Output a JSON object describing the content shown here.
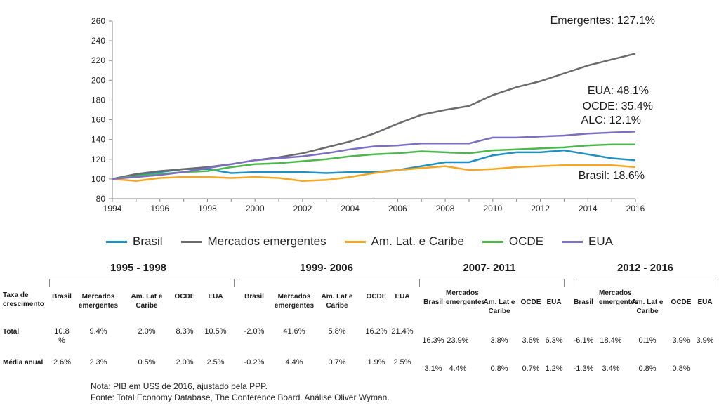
{
  "chart_data": {
    "type": "line",
    "x": [
      1994,
      1995,
      1996,
      1997,
      1998,
      1999,
      2000,
      2001,
      2002,
      2003,
      2004,
      2005,
      2006,
      2007,
      2008,
      2009,
      2010,
      2011,
      2012,
      2013,
      2014,
      2015,
      2016
    ],
    "x_ticks": [
      "1994",
      "1996",
      "1998",
      "2000",
      "2002",
      "2004",
      "2006",
      "2008",
      "2010",
      "2012",
      "2014",
      "2016"
    ],
    "y_ticks": [
      "80",
      "100",
      "120",
      "140",
      "160",
      "180",
      "200",
      "220",
      "240",
      "260"
    ],
    "ylim": [
      80,
      260
    ],
    "xlim": [
      1994,
      2016
    ],
    "series": [
      {
        "name": "Brasil",
        "color": "#1f91bf",
        "values": [
          100,
          104,
          107,
          110,
          110,
          106,
          107,
          107,
          107,
          106,
          107,
          107,
          109,
          113,
          117,
          117,
          124,
          127,
          127,
          129,
          125,
          121,
          119
        ]
      },
      {
        "name": "Mercados emergentes",
        "color": "#6b6b6b",
        "values": [
          100,
          105,
          108,
          110,
          112,
          115,
          119,
          122,
          126,
          132,
          138,
          146,
          156,
          165,
          170,
          174,
          185,
          193,
          199,
          207,
          215,
          221,
          227
        ]
      },
      {
        "name": "Am. Lat. e Caribe",
        "color": "#f5a623",
        "values": [
          100,
          98,
          101,
          102,
          102,
          101,
          102,
          101,
          98,
          99,
          102,
          106,
          109,
          111,
          113,
          109,
          110,
          112,
          113,
          114,
          114,
          114,
          112
        ]
      },
      {
        "name": "OCDE",
        "color": "#4cb84c",
        "values": [
          100,
          103,
          105,
          107,
          108,
          112,
          115,
          116,
          118,
          120,
          123,
          125,
          126,
          128,
          127,
          126,
          129,
          130,
          131,
          132,
          134,
          135,
          135
        ]
      },
      {
        "name": "EUA",
        "color": "#7a6fc2",
        "values": [
          100,
          102,
          104,
          107,
          111,
          115,
          119,
          121,
          123,
          126,
          130,
          133,
          134,
          136,
          136,
          136,
          142,
          142,
          143,
          144,
          146,
          147,
          148
        ]
      }
    ],
    "annotations": [
      "Emergentes: 127.1%",
      "EUA: 48.1%",
      "OCDE: 35.4%",
      "ALC: 12.1%",
      "Brasil: 18.6%"
    ],
    "legend": "bottom",
    "grid": false
  },
  "table": {
    "periods": [
      "1995 - 1998",
      "1999- 2006",
      "2007- 2011",
      "2012 - 2016"
    ],
    "row_header": "Taxa de crescimento",
    "columns": [
      "Brasil",
      "Mercados emergentes",
      "Am. Lat e Caribe",
      "OCDE",
      "EUA"
    ],
    "rows": [
      {
        "label": "Total",
        "values": [
          [
            "10.8 %",
            "9.4%",
            "2.0%",
            "8.3%",
            "10.5%"
          ],
          [
            "-2.0%",
            "41.6%",
            "5.8%",
            "16.2%",
            "21.4%"
          ],
          [
            "16.3%",
            "23.9%",
            "3.8%",
            "3.6%",
            "6.3%"
          ],
          [
            "-6.1%",
            "18.4%",
            "0.1%",
            "3.9%",
            "3.9%"
          ]
        ]
      },
      {
        "label": "Média anual",
        "values": [
          [
            "2.6%",
            "2.3%",
            "0.5%",
            "2.0%",
            "2.5%"
          ],
          [
            "-0.2%",
            "4.4%",
            "0.7%",
            "1.9%",
            "2.5%"
          ],
          [
            "3.1%",
            "4.4%",
            "0.8%",
            "0.7%",
            "1.2%"
          ],
          [
            "-1.3%",
            "3.4%",
            "0.8%",
            "0.8%",
            ""
          ]
        ]
      }
    ]
  },
  "notes": {
    "note1": "Nota: PIB em US$ de 2016, ajustado pela PPP.",
    "note2": "Fonte: Total Economy Database, The Conference Board. Análise Oliver Wyman."
  }
}
